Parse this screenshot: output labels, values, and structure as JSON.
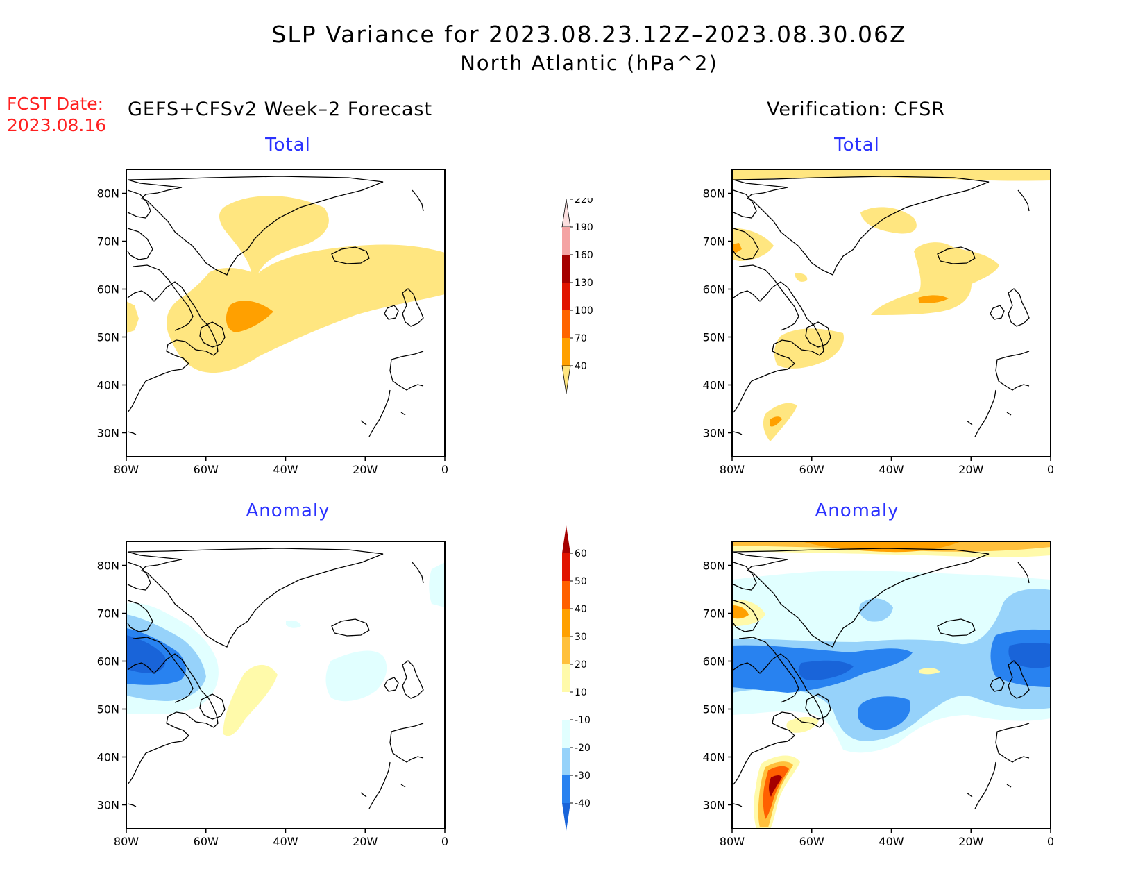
{
  "title": "SLP Variance for 2023.08.23.12Z–2023.08.30.06Z",
  "subtitle": "North Atlantic (hPa^2)",
  "fcst_date": {
    "label": "FCST Date:",
    "value": "2023.08.16"
  },
  "columns": {
    "left": "GEFS+CFSv2 Week–2 Forecast",
    "right": "Verification: CFSR"
  },
  "panels": {
    "forecast_total": {
      "title": "Total"
    },
    "verif_total": {
      "title": "Total"
    },
    "forecast_anomaly": {
      "title": "Anomaly"
    },
    "verif_anomaly": {
      "title": "Anomaly"
    }
  },
  "axes": {
    "lat_ticks": [
      "80N",
      "70N",
      "60N",
      "50N",
      "40N",
      "30N"
    ],
    "lon_ticks": [
      "80W",
      "60W",
      "40W",
      "20W",
      "0"
    ],
    "lon_range": [
      -80,
      0
    ],
    "lat_range": [
      25,
      85
    ]
  },
  "colorbars": {
    "total": {
      "levels": [
        "40",
        "70",
        "100",
        "130",
        "160",
        "190",
        "220"
      ],
      "colors": [
        "#ffe680",
        "#ffa000",
        "#ff6400",
        "#e11400",
        "#a50000",
        "#f4a3a3",
        "#fbdfdf"
      ]
    },
    "anomaly": {
      "levels": [
        "-40",
        "-30",
        "-20",
        "-10",
        "10",
        "20",
        "30",
        "40",
        "50",
        "60"
      ],
      "colors": [
        "#1964d9",
        "#2882f0",
        "#96d2fa",
        "#e1ffff",
        "#ffffff",
        "#fffaaa",
        "#ffc03c",
        "#ffa000",
        "#ff6000",
        "#e11400",
        "#a50000"
      ]
    }
  }
}
